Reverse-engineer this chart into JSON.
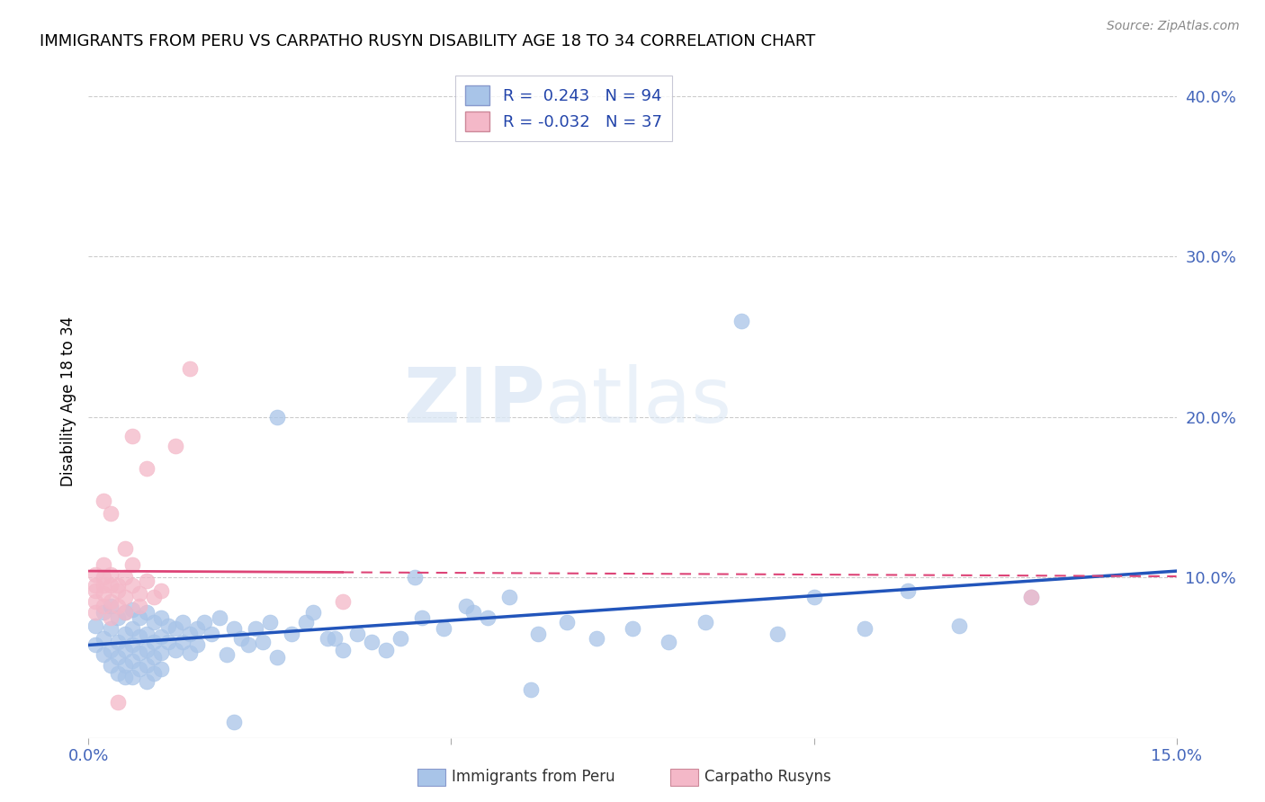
{
  "title": "IMMIGRANTS FROM PERU VS CARPATHO RUSYN DISABILITY AGE 18 TO 34 CORRELATION CHART",
  "source": "Source: ZipAtlas.com",
  "ylabel": "Disability Age 18 to 34",
  "xlim": [
    0.0,
    0.15
  ],
  "ylim": [
    0.0,
    0.42
  ],
  "yticks_right": [
    0.1,
    0.2,
    0.3,
    0.4
  ],
  "ytick_labels_right": [
    "10.0%",
    "20.0%",
    "30.0%",
    "40.0%"
  ],
  "peru_R": 0.243,
  "peru_N": 94,
  "rusyn_R": -0.032,
  "rusyn_N": 37,
  "peru_color": "#a8c4e8",
  "rusyn_color": "#f4b8c8",
  "peru_line_color": "#2255bb",
  "rusyn_line_color": "#dd4477",
  "watermark_zip": "ZIP",
  "watermark_atlas": "atlas",
  "legend_peru_label": "Immigrants from Peru",
  "legend_rusyn_label": "Carpatho Rusyns",
  "peru_scatter_x": [
    0.001,
    0.001,
    0.002,
    0.002,
    0.002,
    0.003,
    0.003,
    0.003,
    0.003,
    0.004,
    0.004,
    0.004,
    0.004,
    0.005,
    0.005,
    0.005,
    0.005,
    0.005,
    0.006,
    0.006,
    0.006,
    0.006,
    0.006,
    0.007,
    0.007,
    0.007,
    0.007,
    0.008,
    0.008,
    0.008,
    0.008,
    0.008,
    0.009,
    0.009,
    0.009,
    0.009,
    0.01,
    0.01,
    0.01,
    0.01,
    0.011,
    0.011,
    0.012,
    0.012,
    0.013,
    0.013,
    0.014,
    0.014,
    0.015,
    0.015,
    0.016,
    0.017,
    0.018,
    0.019,
    0.02,
    0.02,
    0.021,
    0.022,
    0.023,
    0.024,
    0.025,
    0.026,
    0.028,
    0.03,
    0.031,
    0.033,
    0.035,
    0.037,
    0.039,
    0.041,
    0.043,
    0.046,
    0.049,
    0.052,
    0.055,
    0.058,
    0.062,
    0.066,
    0.07,
    0.075,
    0.08,
    0.085,
    0.09,
    0.095,
    0.1,
    0.107,
    0.113,
    0.12,
    0.026,
    0.034,
    0.045,
    0.053,
    0.061,
    0.13
  ],
  "peru_scatter_y": [
    0.07,
    0.058,
    0.078,
    0.062,
    0.052,
    0.082,
    0.068,
    0.055,
    0.045,
    0.075,
    0.06,
    0.05,
    0.04,
    0.078,
    0.065,
    0.055,
    0.045,
    0.038,
    0.08,
    0.068,
    0.058,
    0.048,
    0.038,
    0.075,
    0.063,
    0.053,
    0.043,
    0.078,
    0.065,
    0.055,
    0.045,
    0.035,
    0.072,
    0.06,
    0.05,
    0.04,
    0.075,
    0.063,
    0.053,
    0.043,
    0.07,
    0.06,
    0.068,
    0.055,
    0.072,
    0.06,
    0.065,
    0.053,
    0.068,
    0.058,
    0.072,
    0.065,
    0.075,
    0.052,
    0.01,
    0.068,
    0.062,
    0.058,
    0.068,
    0.06,
    0.072,
    0.05,
    0.065,
    0.072,
    0.078,
    0.062,
    0.055,
    0.065,
    0.06,
    0.055,
    0.062,
    0.075,
    0.068,
    0.082,
    0.075,
    0.088,
    0.065,
    0.072,
    0.062,
    0.068,
    0.06,
    0.072,
    0.26,
    0.065,
    0.088,
    0.068,
    0.092,
    0.07,
    0.2,
    0.062,
    0.1,
    0.078,
    0.03,
    0.088
  ],
  "rusyn_scatter_x": [
    0.001,
    0.001,
    0.001,
    0.001,
    0.001,
    0.002,
    0.002,
    0.002,
    0.002,
    0.002,
    0.003,
    0.003,
    0.003,
    0.003,
    0.004,
    0.004,
    0.004,
    0.005,
    0.005,
    0.005,
    0.006,
    0.006,
    0.007,
    0.007,
    0.008,
    0.009,
    0.01,
    0.012,
    0.014,
    0.035,
    0.002,
    0.003,
    0.005,
    0.13,
    0.004,
    0.006,
    0.008
  ],
  "rusyn_scatter_y": [
    0.092,
    0.085,
    0.078,
    0.095,
    0.102,
    0.1,
    0.09,
    0.082,
    0.108,
    0.095,
    0.095,
    0.085,
    0.075,
    0.102,
    0.092,
    0.082,
    0.095,
    0.1,
    0.088,
    0.078,
    0.108,
    0.095,
    0.09,
    0.082,
    0.098,
    0.088,
    0.092,
    0.182,
    0.23,
    0.085,
    0.148,
    0.14,
    0.118,
    0.088,
    0.022,
    0.188,
    0.168
  ]
}
